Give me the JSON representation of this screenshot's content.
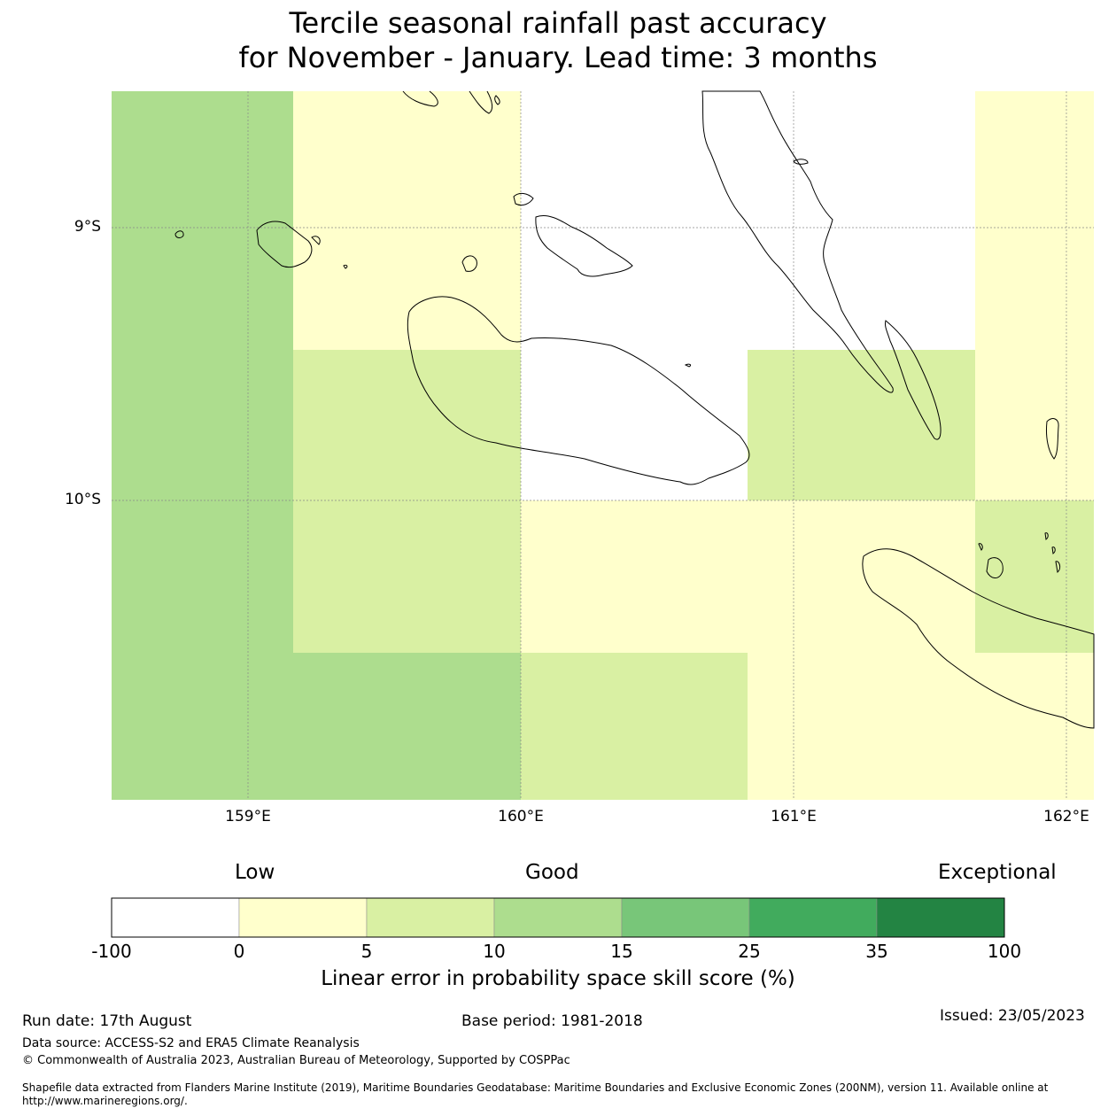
{
  "title": {
    "line1": "Tercile seasonal rainfall past accuracy",
    "line2": "for November - January. Lead time: 3 months"
  },
  "map": {
    "lat_labels": [
      "9°S",
      "10°S"
    ],
    "lon_labels": [
      "159°E",
      "160°E",
      "161°E",
      "162°E"
    ],
    "cell_colors": {
      "cat_neg100_0": "#ffffff",
      "cat_0_5": "#ffffcc",
      "cat_5_10": "#d9f0a3",
      "cat_10_15": "#addd8e"
    }
  },
  "colorbar": {
    "categories": [
      "Low",
      "Good",
      "Exceptional"
    ],
    "ticks": [
      "-100",
      "0",
      "5",
      "10",
      "15",
      "25",
      "35",
      "100"
    ],
    "colors": [
      "#ffffff",
      "#ffffcc",
      "#d9f0a3",
      "#addd8e",
      "#78c679",
      "#41ab5d",
      "#238443"
    ],
    "label": "Linear error in probability space skill score (%)"
  },
  "footer": {
    "run_date": "Run date: 17th August",
    "base_period": "Base period: 1981-2018",
    "issued": "Issued: 23/05/2023",
    "data_source": "Data source: ACCESS-S2 and ERA5 Climate Reanalysis",
    "copyright": "© Commonwealth of Australia 2023, Australian Bureau of Meteorology, Supported by COSPPac",
    "shapefile": "Shapefile data extracted from Flanders Marine Institute (2019), Maritime Boundaries Geodatabase: Maritime Boundaries and Exclusive Economic Zones (200NM), version 11. Available online at http://www.marineregions.org/."
  }
}
